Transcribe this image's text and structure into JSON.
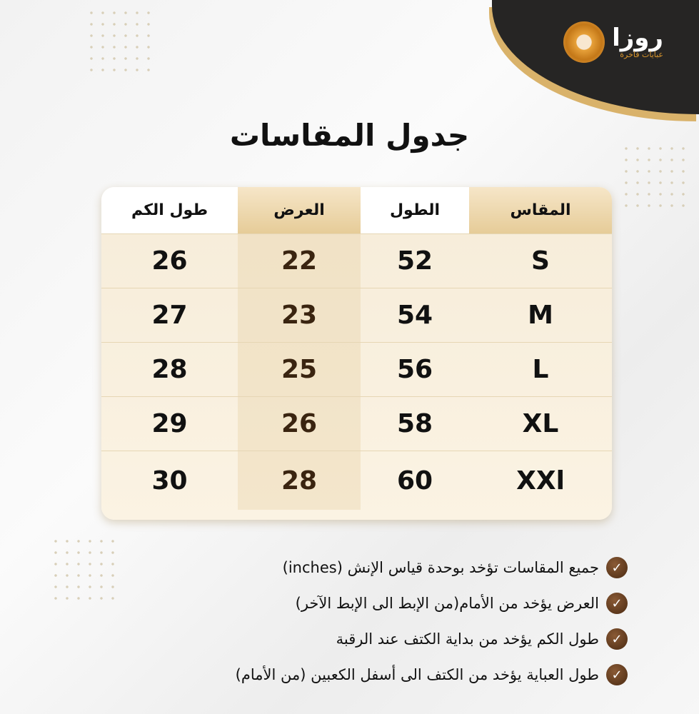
{
  "brand": {
    "name": "روزا",
    "tagline": "عبايات فاخرة"
  },
  "title": "جدول المقاسات",
  "table": {
    "headers": [
      "المقاس",
      "الطول",
      "العرض",
      "طول الكم"
    ],
    "rows": [
      [
        "S",
        "52",
        "22",
        "26"
      ],
      [
        "M",
        "54",
        "23",
        "27"
      ],
      [
        "L",
        "56",
        "25",
        "28"
      ],
      [
        "XL",
        "58",
        "26",
        "29"
      ],
      [
        "XXl",
        "60",
        "28",
        "30"
      ]
    ]
  },
  "notes": [
    "جميع المقاسات تؤخد بوحدة قياس الإنش (inches)",
    "العرض يؤخد من الأمام(من الإبط الى الإبط الآخر)",
    "طول الكم يؤخد من بداية الكتف عند الرقبة",
    "طول العباية يؤخد من الكتف الى أسفل الكعبين (من الأمام)"
  ],
  "colors": {
    "gold": "#d9b26a",
    "dark": "#262524",
    "check": "#5a3518"
  }
}
